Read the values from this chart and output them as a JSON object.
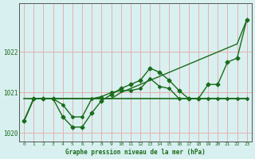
{
  "title": "Graphe pression niveau de la mer (hPa)",
  "xlabel": "Graphe pression niveau de la mer (hPa)",
  "background_color": "#d8f0f0",
  "grid_color": "#e8b0b0",
  "line_color": "#1a6b1a",
  "hours": [
    0,
    1,
    2,
    3,
    4,
    5,
    6,
    7,
    8,
    9,
    10,
    11,
    12,
    13,
    14,
    15,
    16,
    17,
    18,
    19,
    20,
    21,
    22,
    23
  ],
  "series1": [
    1020.3,
    1020.85,
    1020.85,
    1020.85,
    1020.7,
    1020.4,
    1020.4,
    1020.85,
    1020.9,
    1021.0,
    1021.05,
    1021.05,
    1021.1,
    1021.35,
    1021.15,
    1021.1,
    1020.85,
    1020.85,
    1020.85,
    1020.85,
    1020.85,
    1020.85,
    1020.85,
    1020.85
  ],
  "series2": [
    1020.85,
    1020.85,
    1020.85,
    1020.85,
    1020.85,
    1020.85,
    1020.85,
    1020.85,
    1020.85,
    1020.85,
    1020.85,
    1020.85,
    1020.85,
    1020.85,
    1020.85,
    1020.85,
    1020.85,
    1020.85,
    1020.85,
    1020.85,
    1020.85,
    1020.85,
    1020.85,
    1020.85
  ],
  "series3": [
    1020.3,
    1020.85,
    1020.85,
    1020.85,
    1020.4,
    1020.15,
    1020.15,
    1020.5,
    1020.8,
    1020.95,
    1021.1,
    1021.2,
    1021.3,
    1021.6,
    1021.5,
    1021.3,
    1021.05,
    1020.85,
    1020.85,
    1021.2,
    1021.2,
    1021.75,
    1021.85,
    1022.8
  ],
  "series_diag": [
    1020.3,
    1020.85,
    1020.85,
    1020.85,
    1020.85,
    1020.85,
    1020.85,
    1020.85,
    1020.85,
    1020.85,
    1021.0,
    1021.1,
    1021.2,
    1021.3,
    1021.4,
    1021.5,
    1021.6,
    1021.7,
    1021.8,
    1021.9,
    1022.0,
    1022.1,
    1022.2,
    1022.8
  ],
  "ylim": [
    1019.8,
    1023.2
  ],
  "yticks": [
    1020,
    1021,
    1022
  ],
  "xticks": [
    0,
    1,
    2,
    3,
    4,
    5,
    6,
    7,
    8,
    9,
    10,
    11,
    12,
    13,
    14,
    15,
    16,
    17,
    18,
    19,
    20,
    21,
    22,
    23
  ]
}
